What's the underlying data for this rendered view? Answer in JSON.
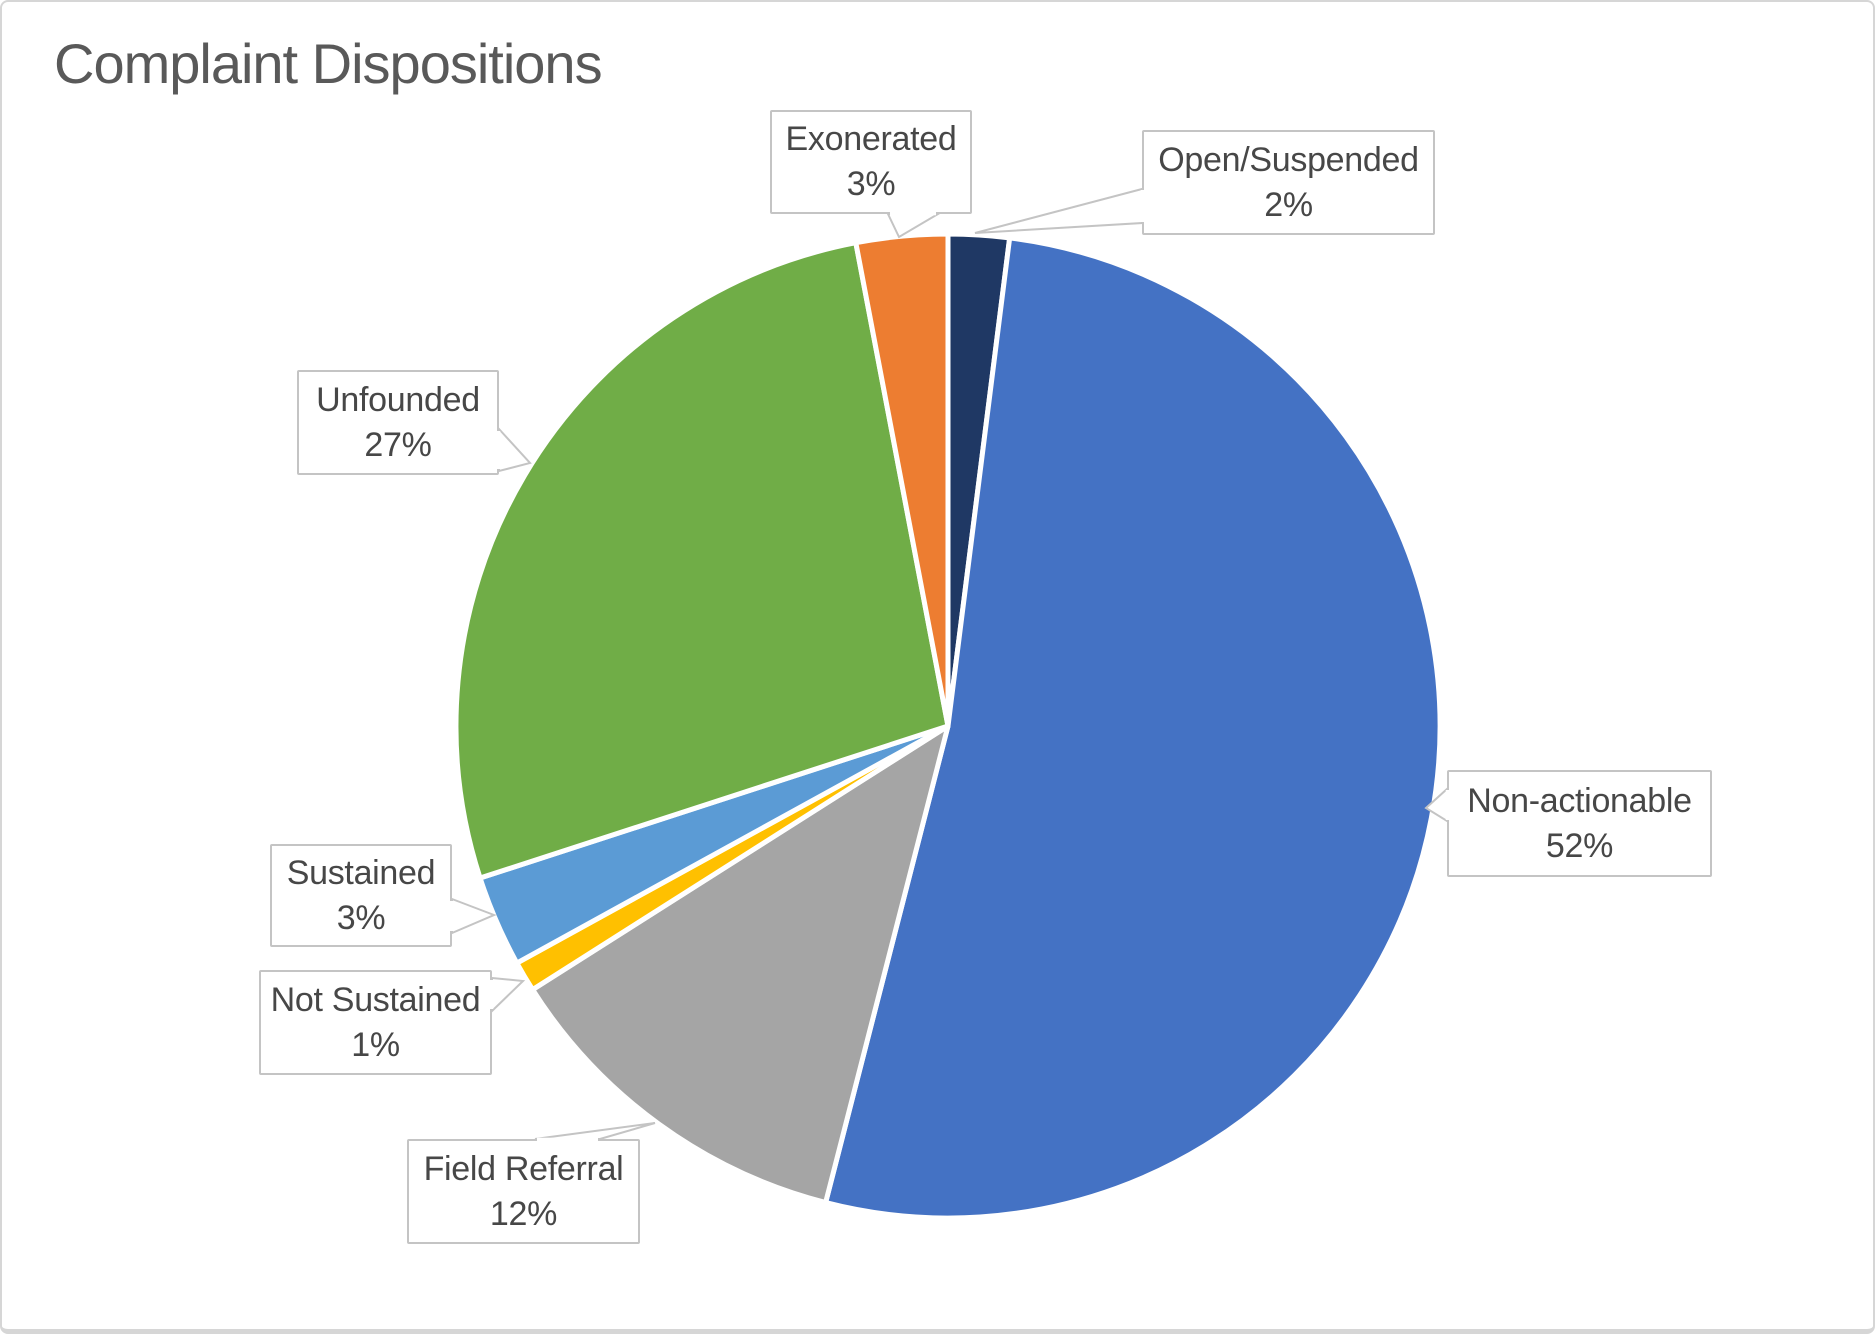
{
  "chart_data": {
    "type": "pie",
    "title": "Complaint Dispositions",
    "units": "percent",
    "start_angle_deg": 0,
    "direction": "clockwise",
    "legend": "none",
    "labels": "callout",
    "points": [
      {
        "label": "Open/Suspended",
        "value": 2,
        "pct_label": "2%",
        "color": "#1f3864"
      },
      {
        "label": "Non-actionable",
        "value": 52,
        "pct_label": "52%",
        "color": "#4472c4"
      },
      {
        "label": "Field Referral",
        "value": 12,
        "pct_label": "12%",
        "color": "#a5a5a5"
      },
      {
        "label": "Not Sustained",
        "value": 1,
        "pct_label": "1%",
        "color": "#ffc000"
      },
      {
        "label": "Sustained",
        "value": 3,
        "pct_label": "3%",
        "color": "#5b9bd5"
      },
      {
        "label": "Unfounded",
        "value": 27,
        "pct_label": "27%",
        "color": "#70ad47"
      },
      {
        "label": "Exonerated",
        "value": 3,
        "pct_label": "3%",
        "color": "#ed7d31"
      }
    ],
    "style": {
      "title_color": "#595959",
      "label_color": "#474747",
      "callout_border_color": "#c4c4c4",
      "slice_separator_color": "#ffffff",
      "background": "#ffffff"
    }
  }
}
